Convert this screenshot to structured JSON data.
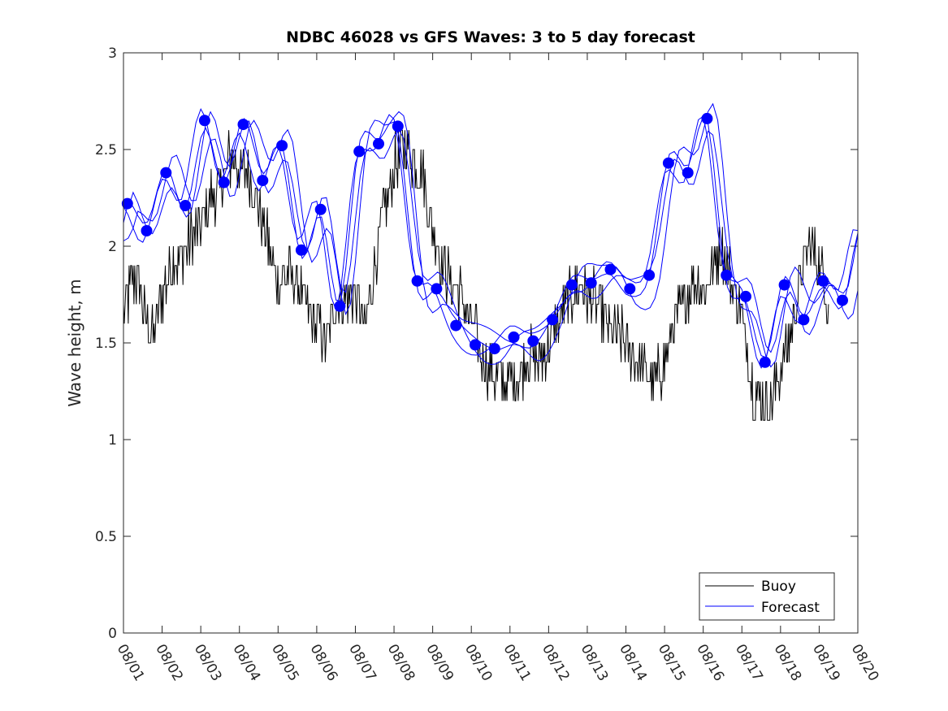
{
  "chart_data": {
    "type": "line",
    "title": "NDBC 46028 vs GFS Waves: 3 to 5 day forecast",
    "xlabel": "",
    "ylabel": "Wave height, m",
    "xlim": [
      0,
      19
    ],
    "ylim": [
      0,
      3
    ],
    "yticks": [
      0,
      0.5,
      1,
      1.5,
      2,
      2.5,
      3
    ],
    "ytick_labels": [
      "0",
      "0.5",
      "1",
      "1.5",
      "2",
      "2.5",
      "3"
    ],
    "xtick_labels": [
      "08/01",
      "08/02",
      "08/03",
      "08/04",
      "08/05",
      "08/06",
      "08/07",
      "08/08",
      "08/09",
      "08/10",
      "08/11",
      "08/12",
      "08/13",
      "08/14",
      "08/15",
      "08/16",
      "08/17",
      "08/18",
      "08/19",
      "08/20"
    ],
    "legend": {
      "position": "bottom-right",
      "entries": [
        "Buoy",
        "Forecast"
      ]
    },
    "colors": {
      "buoy": "#000000",
      "forecast": "#0000ff",
      "markers": "#0000ff"
    },
    "buoy_anchors": {
      "x": [
        0,
        0.15,
        0.3,
        0.45,
        0.6,
        0.8,
        1.0,
        1.25,
        1.5,
        1.75,
        2.0,
        2.25,
        2.5,
        2.75,
        3.0,
        3.25,
        3.5,
        3.75,
        4.0,
        4.25,
        4.5,
        4.75,
        5.0,
        5.25,
        5.5,
        5.75,
        6.0,
        6.25,
        6.5,
        6.75,
        7.0,
        7.25,
        7.5,
        7.75,
        8.0,
        8.25,
        8.5,
        8.75,
        9.0,
        9.25,
        9.5,
        9.75,
        10.0,
        10.25,
        10.5,
        10.75,
        11.0,
        11.25,
        11.5,
        11.75,
        12.0,
        12.25,
        12.5,
        12.75,
        13.0,
        13.25,
        13.5,
        13.75,
        14.0,
        14.25,
        14.5,
        14.75,
        15.0,
        15.25,
        15.5,
        15.75,
        16.0,
        16.25,
        16.5,
        16.75,
        17.0,
        17.25,
        17.5,
        17.75,
        18.0,
        18.25
      ],
      "y": [
        1.65,
        1.75,
        1.85,
        1.75,
        1.6,
        1.55,
        1.75,
        1.9,
        1.95,
        2.05,
        2.1,
        2.25,
        2.3,
        2.45,
        2.4,
        2.35,
        2.2,
        2.0,
        1.8,
        1.85,
        1.8,
        1.65,
        1.6,
        1.5,
        1.7,
        1.75,
        1.75,
        1.55,
        1.9,
        2.2,
        2.4,
        2.5,
        2.45,
        2.35,
        2.1,
        1.9,
        1.8,
        1.75,
        1.6,
        1.45,
        1.35,
        1.3,
        1.3,
        1.35,
        1.45,
        1.4,
        1.5,
        1.6,
        1.7,
        1.8,
        1.75,
        1.7,
        1.6,
        1.55,
        1.5,
        1.4,
        1.35,
        1.3,
        1.4,
        1.6,
        1.7,
        1.85,
        1.75,
        1.9,
        2.0,
        1.8,
        1.65,
        1.3,
        1.2,
        1.2,
        1.35,
        1.55,
        1.8,
        2.0,
        1.9,
        1.7
      ]
    },
    "forecast_markers": {
      "x": [
        0.1,
        0.6,
        1.1,
        1.6,
        2.1,
        2.6,
        3.1,
        3.6,
        4.1,
        4.6,
        5.1,
        5.6,
        6.1,
        6.6,
        7.1,
        7.6,
        8.1,
        8.6,
        9.1,
        9.6,
        10.1,
        10.6,
        11.1,
        11.6,
        12.1,
        12.6,
        13.1,
        13.6,
        14.1,
        14.6,
        15.1,
        15.6,
        16.1,
        16.6,
        17.1,
        17.6,
        18.1,
        18.6
      ],
      "y": [
        2.22,
        2.08,
        2.38,
        2.21,
        2.65,
        2.33,
        2.63,
        2.34,
        2.52,
        1.98,
        2.19,
        1.69,
        2.49,
        2.53,
        2.62,
        1.82,
        1.78,
        1.59,
        1.49,
        1.47,
        1.53,
        1.51,
        1.62,
        1.8,
        1.81,
        1.88,
        1.78,
        1.85,
        2.43,
        2.38,
        2.66,
        1.85,
        1.74,
        1.4,
        1.8,
        1.62,
        1.82,
        1.72
      ]
    }
  }
}
